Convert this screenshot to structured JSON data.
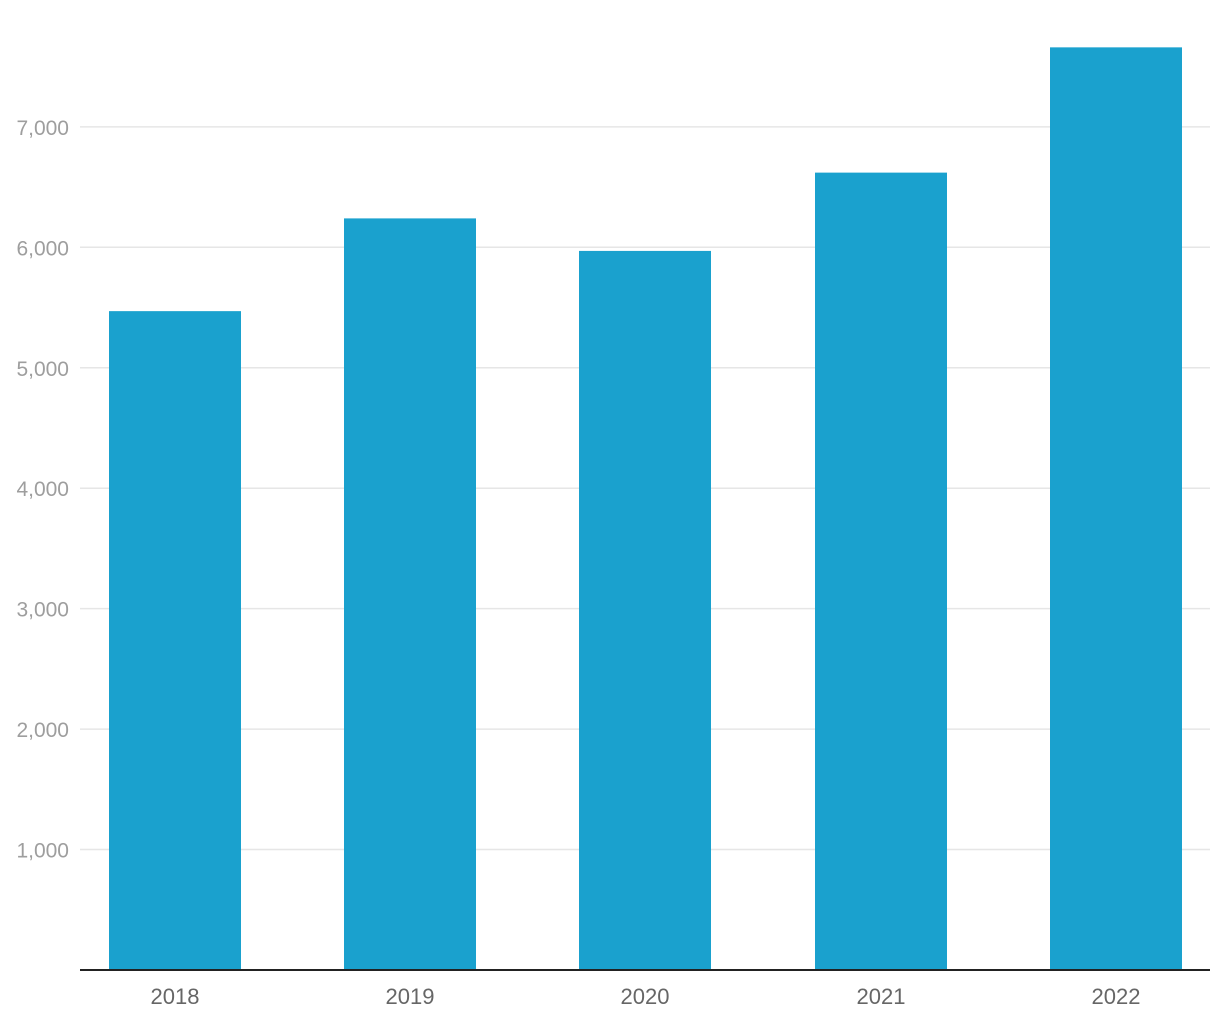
{
  "chart_data": {
    "type": "bar",
    "title": "",
    "xlabel": "",
    "ylabel": "",
    "categories": [
      "2018",
      "2019",
      "2020",
      "2021",
      "2022"
    ],
    "values": [
      5470,
      6240,
      5970,
      6620,
      7660
    ],
    "ylim": [
      0,
      8000
    ],
    "yticks": [
      1000,
      2000,
      3000,
      4000,
      5000,
      6000,
      7000
    ],
    "ytick_labels": [
      "1,000",
      "2,000",
      "3,000",
      "4,000",
      "5,000",
      "6,000",
      "7,000"
    ],
    "grid": true,
    "legend": "none",
    "colors": {
      "bar": "#1aa1ce",
      "grid": "#e6e6e6",
      "axis": "#222222",
      "tick_text": "#9e9e9e",
      "category_text": "#666666"
    }
  }
}
